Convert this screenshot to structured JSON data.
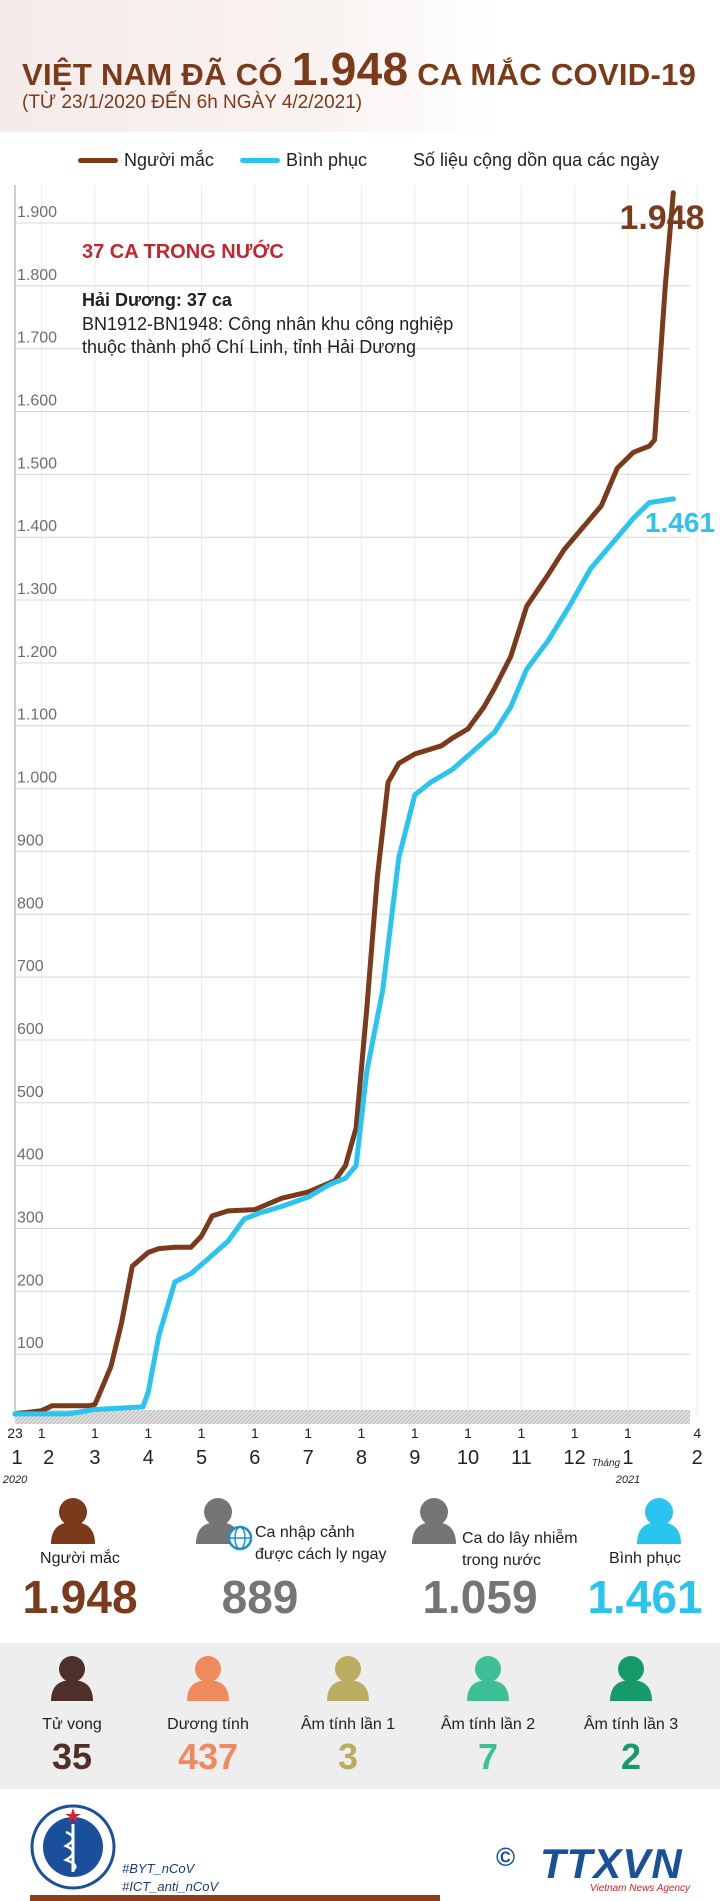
{
  "header": {
    "title_pre": "VIỆT NAM ĐÃ CÓ ",
    "title_num": "1.948",
    "title_post": " CA MẮC COVID-19",
    "subtitle": "(TỪ 23/1/2020 ĐẾN 6h NGÀY 4/2/2021)"
  },
  "legend": {
    "cases": "Người mắc",
    "recovered": "Bình phục",
    "note": "Số liệu cộng dồn qua các ngày"
  },
  "colors": {
    "cases": "#7b3a1a",
    "recovered": "#29c4f0",
    "title": "#7b3a1a",
    "domestic_head": "#c4262e"
  },
  "annotation": {
    "heading": "37 CA TRONG NƯỚC",
    "place": "Hải Dương: 37 ca",
    "line1": "BN1912-BN1948: Công nhân khu công nghiệp",
    "line2": "thuộc thành phố Chí Linh, tỉnh Hải Dương"
  },
  "chart_data": {
    "type": "line",
    "ylim": [
      0,
      1900
    ],
    "yticks": [
      "100",
      "200",
      "300",
      "400",
      "500",
      "600",
      "700",
      "800",
      "900",
      "1.000",
      "1.100",
      "1.200",
      "1.300",
      "1.400",
      "1.500",
      "1.600",
      "1.700",
      "1.800",
      "1.900"
    ],
    "x_labels": [
      {
        "t": 0,
        "day": "23",
        "month": "1",
        "year": "2020"
      },
      {
        "t": 0.5,
        "day": "1",
        "month": "2"
      },
      {
        "t": 1.5,
        "day": "1",
        "month": "3"
      },
      {
        "t": 2.5,
        "day": "1",
        "month": "4"
      },
      {
        "t": 3.5,
        "day": "1",
        "month": "5"
      },
      {
        "t": 4.5,
        "day": "1",
        "month": "6"
      },
      {
        "t": 5.5,
        "day": "1",
        "month": "7"
      },
      {
        "t": 6.5,
        "day": "1",
        "month": "8"
      },
      {
        "t": 7.5,
        "day": "1",
        "month": "9"
      },
      {
        "t": 8.5,
        "day": "1",
        "month": "10"
      },
      {
        "t": 9.5,
        "day": "1",
        "month": "11"
      },
      {
        "t": 10.5,
        "day": "1",
        "month": "12"
      },
      {
        "t": 11.5,
        "day": "1",
        "month": "1",
        "year": "2021",
        "month_word": "Tháng"
      },
      {
        "t": 12.8,
        "day": "4",
        "month": "2"
      }
    ],
    "series": [
      {
        "name": "Người mắc",
        "end_label": "1.948",
        "points": [
          [
            0,
            5
          ],
          [
            0.5,
            10
          ],
          [
            0.7,
            18
          ],
          [
            1.0,
            18
          ],
          [
            1.4,
            18
          ],
          [
            1.5,
            20
          ],
          [
            1.6,
            40
          ],
          [
            1.8,
            80
          ],
          [
            2.0,
            150
          ],
          [
            2.2,
            240
          ],
          [
            2.5,
            262
          ],
          [
            2.7,
            268
          ],
          [
            3.0,
            270
          ],
          [
            3.3,
            270
          ],
          [
            3.5,
            288
          ],
          [
            3.7,
            320
          ],
          [
            4.0,
            328
          ],
          [
            4.5,
            330
          ],
          [
            5.0,
            348
          ],
          [
            5.5,
            358
          ],
          [
            6.0,
            376
          ],
          [
            6.2,
            400
          ],
          [
            6.4,
            460
          ],
          [
            6.6,
            650
          ],
          [
            6.8,
            860
          ],
          [
            7.0,
            1010
          ],
          [
            7.2,
            1040
          ],
          [
            7.5,
            1055
          ],
          [
            8.0,
            1068
          ],
          [
            8.2,
            1080
          ],
          [
            8.5,
            1095
          ],
          [
            8.8,
            1130
          ],
          [
            9.0,
            1160
          ],
          [
            9.3,
            1210
          ],
          [
            9.6,
            1290
          ],
          [
            10.0,
            1340
          ],
          [
            10.3,
            1380
          ],
          [
            10.6,
            1410
          ],
          [
            11.0,
            1450
          ],
          [
            11.3,
            1510
          ],
          [
            11.6,
            1535
          ],
          [
            11.9,
            1545
          ],
          [
            12.0,
            1555
          ],
          [
            12.2,
            1800
          ],
          [
            12.35,
            1948
          ]
        ]
      },
      {
        "name": "Bình phục",
        "end_label": "1.461",
        "points": [
          [
            0,
            5
          ],
          [
            1.0,
            5
          ],
          [
            1.5,
            12
          ],
          [
            2.4,
            16
          ],
          [
            2.5,
            40
          ],
          [
            2.7,
            130
          ],
          [
            3.0,
            215
          ],
          [
            3.3,
            228
          ],
          [
            3.6,
            250
          ],
          [
            4.0,
            280
          ],
          [
            4.3,
            315
          ],
          [
            4.6,
            325
          ],
          [
            5.0,
            335
          ],
          [
            5.5,
            350
          ],
          [
            5.9,
            370
          ],
          [
            6.2,
            380
          ],
          [
            6.4,
            400
          ],
          [
            6.6,
            550
          ],
          [
            6.9,
            680
          ],
          [
            7.2,
            890
          ],
          [
            7.5,
            990
          ],
          [
            7.8,
            1010
          ],
          [
            8.2,
            1030
          ],
          [
            8.6,
            1060
          ],
          [
            9.0,
            1090
          ],
          [
            9.3,
            1130
          ],
          [
            9.6,
            1190
          ],
          [
            10.0,
            1235
          ],
          [
            10.4,
            1290
          ],
          [
            10.8,
            1350
          ],
          [
            11.2,
            1390
          ],
          [
            11.6,
            1430
          ],
          [
            11.9,
            1455
          ],
          [
            12.35,
            1461
          ]
        ]
      }
    ]
  },
  "stats_main": [
    {
      "label1": "Người mắc",
      "label2": "",
      "value": "1.948",
      "color": "#7b3a1a"
    },
    {
      "label1": "Ca nhập cảnh",
      "label2": "được cách ly ngay",
      "value": "889",
      "color": "#757575"
    },
    {
      "label1": "Ca do lây nhiễm",
      "label2": "trong nước",
      "value": "1.059",
      "color": "#757575"
    },
    {
      "label1": "Bình phục",
      "label2": "",
      "value": "1.461",
      "color": "#29c4f0"
    }
  ],
  "stats_secondary": [
    {
      "label": "Tử vong",
      "value": "35",
      "color": "#4e2f2a"
    },
    {
      "label": "Dương tính",
      "value": "437",
      "color": "#ef8a5e"
    },
    {
      "label": "Âm tính lần 1",
      "value": "3",
      "color": "#b9ad5f"
    },
    {
      "label": "Âm tính lần 2",
      "value": "7",
      "color": "#3fbf98"
    },
    {
      "label": "Âm tính lần 3",
      "value": "2",
      "color": "#159a6a"
    }
  ],
  "footer": {
    "hashtag1": "#BYT_nCoV",
    "hashtag2": "#ICT_anti_nCoV",
    "agency": "TTXVN",
    "agency_sub": "Vietnam News Agency",
    "copyright": "©"
  }
}
